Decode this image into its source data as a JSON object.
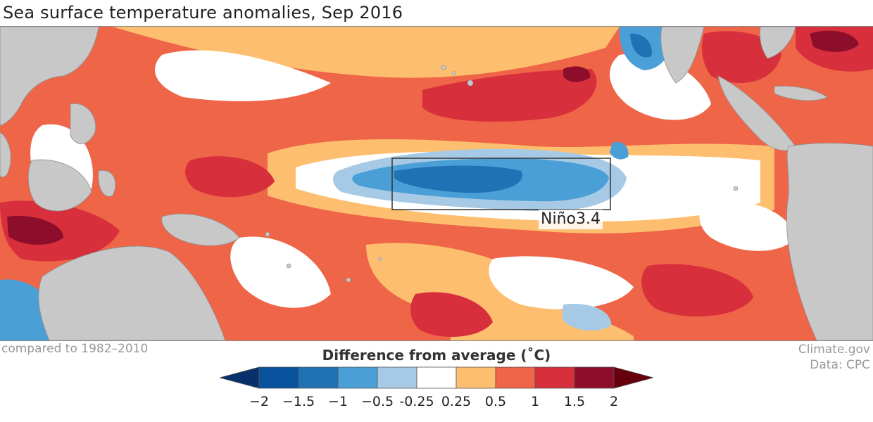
{
  "title": "Sea surface temperature anomalies, Sep 2016",
  "footer": {
    "compared": "compared to 1982–2010",
    "credit_line1": "Climate.gov",
    "credit_line2": "Data: CPC"
  },
  "map": {
    "region_label": "Niño3.4",
    "land_color": "#c8c8c8"
  },
  "legend": {
    "title": "Difference from average (˚C)",
    "ticks": [
      "−2",
      "−1.5",
      "−1",
      "−0.5",
      "-0.25",
      "0.25",
      "0.5",
      "1",
      "1.5",
      "2"
    ],
    "colors": [
      "#08306b",
      "#08519c",
      "#2171b5",
      "#4a9fd6",
      "#a6cae6",
      "#ffffff",
      "#fdbf6f",
      "#ef6548",
      "#d7303c",
      "#8c0e2a",
      "#67000d"
    ]
  },
  "colors": {
    "warm_light": "#fdbf6f",
    "warm": "#ef6548",
    "warm_strong": "#d7303c",
    "warm_deep": "#8c0e2a",
    "cool_light": "#a6cae6",
    "cool": "#4a9fd6",
    "cool_strong": "#2171b5",
    "cool_deep": "#08519c"
  }
}
